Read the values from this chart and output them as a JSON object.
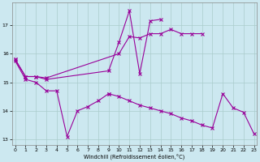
{
  "bg_color": "#cce8f0",
  "line_color": "#990099",
  "grid_color": "#aacccc",
  "xlabel": "Windchill (Refroidissement éolien,°C)",
  "xlim": [
    -0.3,
    23.3
  ],
  "ylim": [
    12.8,
    17.8
  ],
  "xticks": [
    0,
    1,
    2,
    3,
    4,
    5,
    6,
    7,
    8,
    9,
    10,
    11,
    12,
    13,
    14,
    15,
    16,
    17,
    18,
    19,
    20,
    21,
    22,
    23
  ],
  "yticks": [
    13,
    14,
    15,
    16,
    17
  ],
  "line1": {
    "x": [
      0,
      1,
      2,
      3,
      10,
      11,
      12,
      13,
      14,
      15,
      16,
      17,
      18
    ],
    "y": [
      15.8,
      15.2,
      15.2,
      15.15,
      16.0,
      16.6,
      16.55,
      16.7,
      16.7,
      16.85,
      16.7,
      16.7,
      16.7
    ]
  },
  "line2": {
    "x": [
      0,
      1,
      2,
      3,
      9,
      10,
      11,
      12,
      13,
      14
    ],
    "y": [
      15.8,
      15.2,
      15.2,
      15.1,
      15.4,
      16.4,
      17.5,
      15.3,
      17.15,
      17.2
    ]
  },
  "line3a": {
    "x": [
      0,
      1,
      2,
      3,
      4,
      5,
      6,
      7,
      8,
      9
    ],
    "y": [
      15.75,
      15.1,
      15.0,
      14.7,
      14.7,
      13.1,
      14.0,
      14.15,
      14.35,
      14.6
    ]
  },
  "line3b": {
    "x": [
      9,
      10,
      11,
      12,
      13,
      14,
      15,
      16,
      17,
      18,
      19,
      20,
      21,
      22,
      23
    ],
    "y": [
      14.6,
      14.5,
      14.35,
      14.2,
      14.1,
      14.0,
      13.9,
      13.75,
      13.65,
      13.5,
      13.4,
      14.6,
      14.1,
      13.95,
      13.2
    ]
  }
}
